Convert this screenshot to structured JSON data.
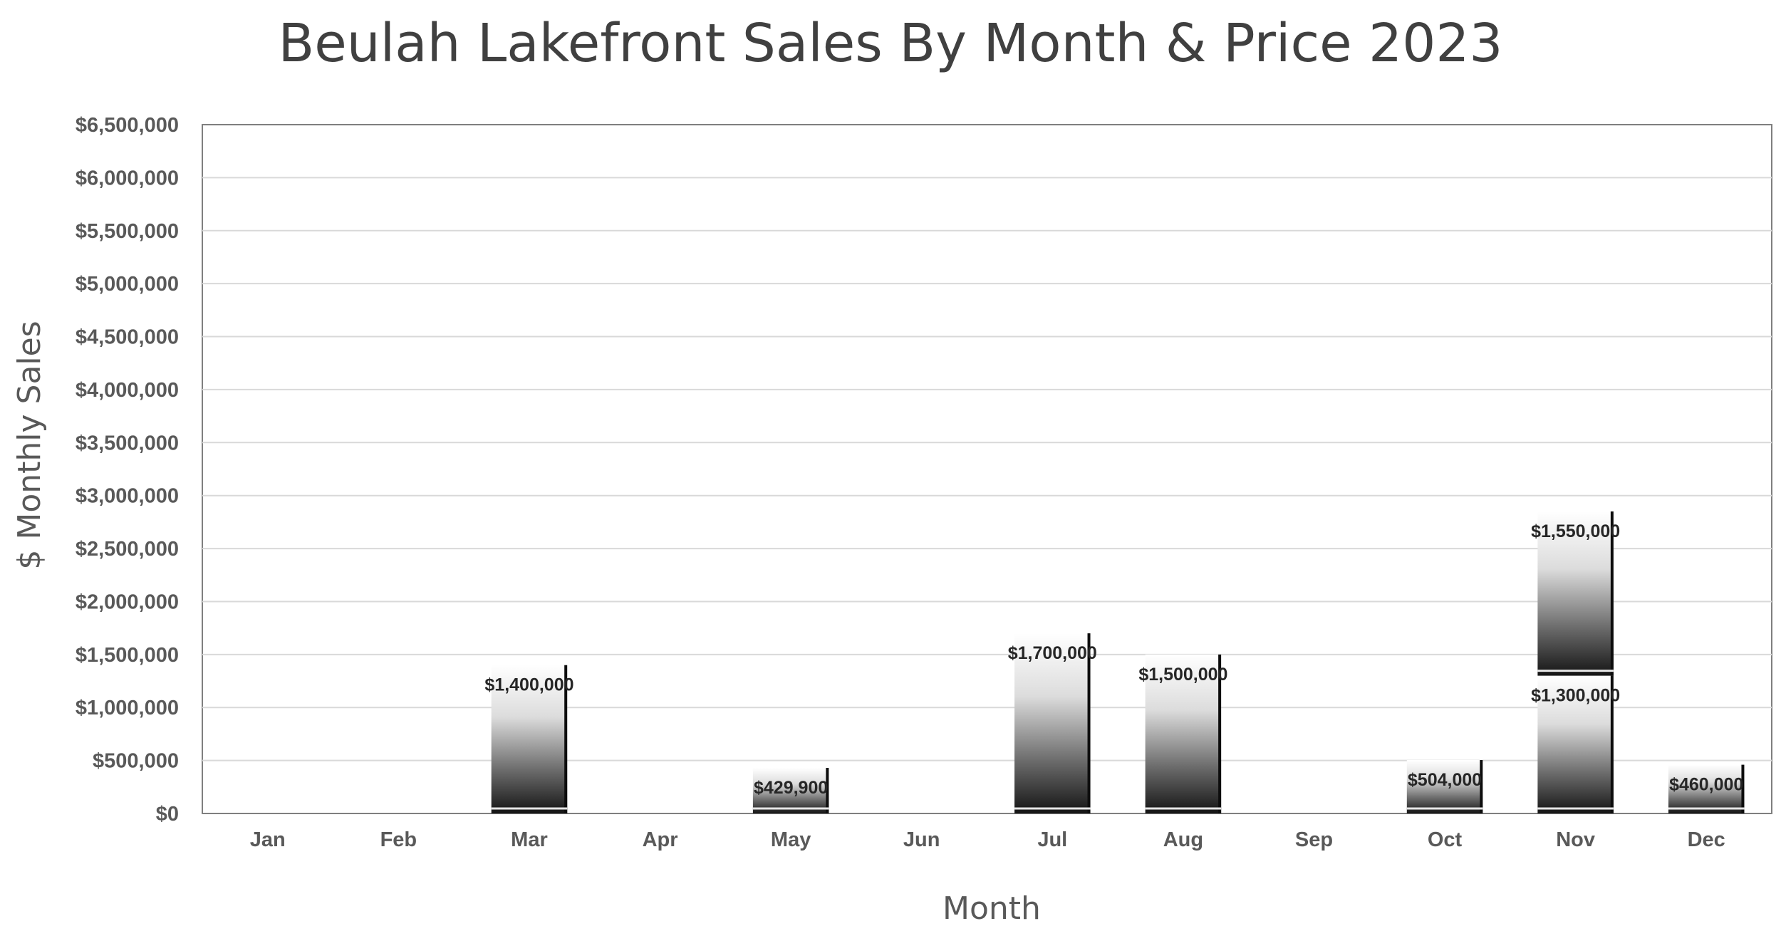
{
  "chart_data": {
    "type": "bar",
    "stacked": true,
    "title": "Beulah Lakefront Sales By Month & Price 2023",
    "xlabel": "Month",
    "ylabel": "$ Monthly Sales",
    "ylim": [
      0,
      6500000
    ],
    "ytick_step": 500000,
    "yticks": [
      "$0",
      "$500,000",
      "$1,000,000",
      "$1,500,000",
      "$2,000,000",
      "$2,500,000",
      "$3,000,000",
      "$3,500,000",
      "$4,000,000",
      "$4,500,000",
      "$5,000,000",
      "$5,500,000",
      "$6,000,000",
      "$6,500,000"
    ],
    "grid": true,
    "legend": "none",
    "categories": [
      "Jan",
      "Feb",
      "Mar",
      "Apr",
      "May",
      "Jun",
      "Jul",
      "Aug",
      "Sep",
      "Oct",
      "Nov",
      "Dec"
    ],
    "series": [
      {
        "values": [
          null,
          null,
          1400000,
          null,
          429900,
          null,
          1700000,
          1500000,
          null,
          504000,
          1300000,
          460000
        ],
        "labels": [
          "",
          "",
          "$1,400,000",
          "",
          "$429,900",
          "",
          "$1,700,000",
          "$1,500,000",
          "",
          "$504,000",
          "$1,300,000",
          "$460,000"
        ]
      },
      {
        "values": [
          null,
          null,
          null,
          null,
          null,
          null,
          null,
          null,
          null,
          null,
          1550000,
          null
        ],
        "labels": [
          "",
          "",
          "",
          "",
          "",
          "",
          "",
          "",
          "",
          "",
          "$1,550,000",
          ""
        ]
      }
    ],
    "colors": {
      "bar_light": "#ffffff",
      "bar_dark": "#1a1a1a",
      "grid": "#d9d9d9",
      "axis": "#7f7f7f",
      "title": "#404040",
      "tick": "#595959"
    }
  }
}
